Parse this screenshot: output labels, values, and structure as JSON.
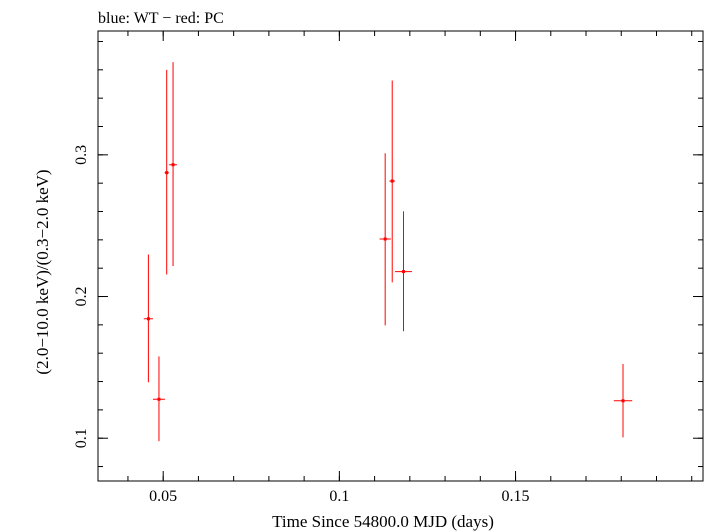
{
  "chart_data": {
    "type": "scatter",
    "title": "blue: WT − red: PC",
    "xlabel": "Time Since 54800.0 MJD (days)",
    "ylabel": "(2.0−10.0 keV)/(0.3−2.0 keV)",
    "xlim": [
      0.0315,
      0.2032
    ],
    "ylim": [
      0.0698,
      0.3874
    ],
    "x_ticks": [
      {
        "value": 0.05,
        "label": "0.05"
      },
      {
        "value": 0.1,
        "label": "0.1"
      },
      {
        "value": 0.15,
        "label": "0.15"
      }
    ],
    "y_ticks": [
      {
        "value": 0.1,
        "label": "0.1"
      },
      {
        "value": 0.2,
        "label": "0.2"
      },
      {
        "value": 0.3,
        "label": "0.3"
      }
    ],
    "x_minor_step": 0.01,
    "y_minor_step": 0.02,
    "series": [
      {
        "name": "PC",
        "color": "#ff0000",
        "points": [
          {
            "x": 0.0458,
            "xerr": 0.0013,
            "y": 0.1843,
            "ylo": 0.1395,
            "yhi": 0.2297
          },
          {
            "x": 0.0488,
            "xerr": 0.0017,
            "y": 0.1275,
            "ylo": 0.0979,
            "yhi": 0.1577
          },
          {
            "x": 0.051,
            "xerr": 0.0006,
            "y": 0.2874,
            "ylo": 0.2155,
            "yhi": 0.36
          },
          {
            "x": 0.0528,
            "xerr": 0.0011,
            "y": 0.293,
            "ylo": 0.2215,
            "yhi": 0.3654
          },
          {
            "x": 0.113,
            "xerr": 0.0016,
            "y": 0.2406,
            "ylo": 0.1796,
            "yhi": 0.3011
          },
          {
            "x": 0.115,
            "xerr": 0.0008,
            "y": 0.2815,
            "ylo": 0.21,
            "yhi": 0.3525
          },
          {
            "x": 0.1182,
            "xerr": 0.0024,
            "y": 0.2176,
            "ylo": 0.1755,
            "yhi": 0.2601
          },
          {
            "x": 0.1805,
            "xerr": 0.0026,
            "y": 0.1264,
            "ylo": 0.1006,
            "yhi": 0.1524
          }
        ]
      }
    ]
  }
}
